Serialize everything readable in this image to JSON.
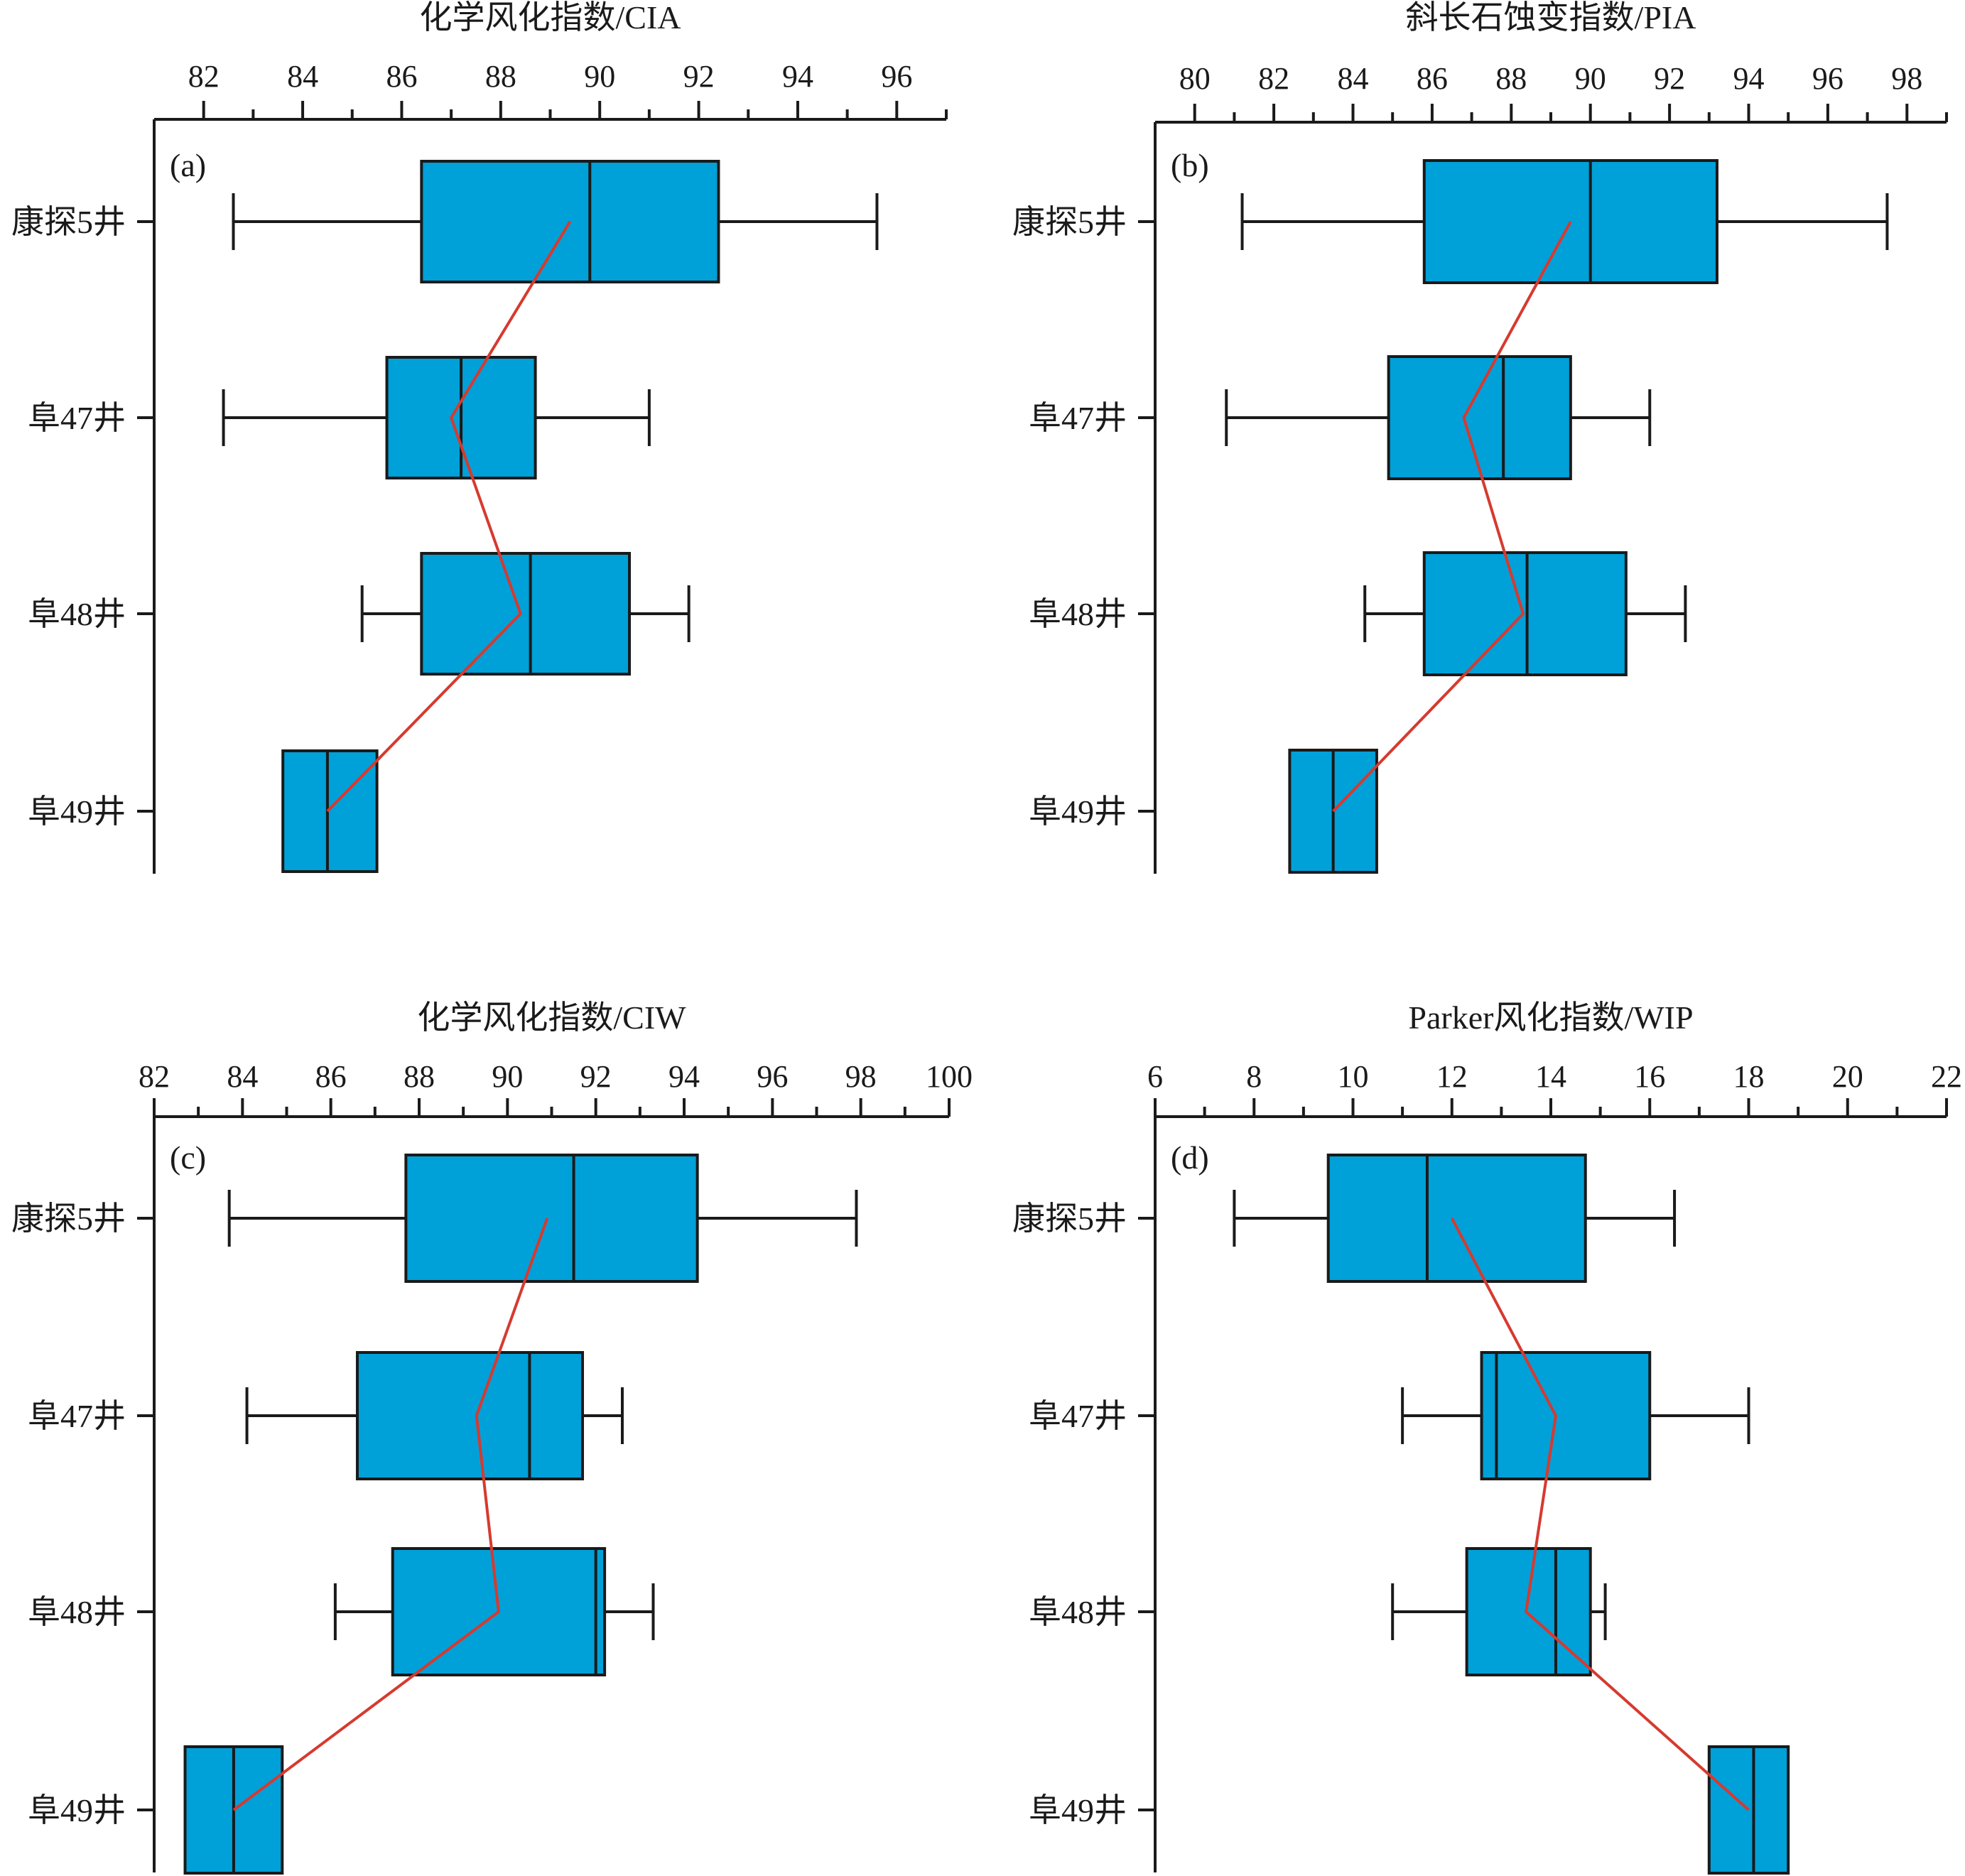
{
  "colors": {
    "box": "#00A0D8",
    "box_stroke": "#1a1a1a",
    "mean_line": "#D63A2F",
    "axis": "#1a1a1a"
  },
  "chart_data": [
    {
      "type": "box",
      "panel_label": "(a)",
      "title": "化学风化指数/CIA",
      "xlim": [
        81,
        97
      ],
      "xticks": [
        82,
        84,
        86,
        88,
        90,
        92,
        94,
        96
      ],
      "xtick_labels": [
        "82",
        "84",
        "86",
        "88",
        "90",
        "92",
        "94",
        "96"
      ],
      "minor_step": 1,
      "categories": [
        "康探5井",
        "阜47井",
        "阜48井",
        "阜49井"
      ],
      "boxes": [
        {
          "min": 82.6,
          "q1": 86.4,
          "median": 89.8,
          "q3": 92.4,
          "max": 95.6
        },
        {
          "min": 82.4,
          "q1": 85.7,
          "median": 87.2,
          "q3": 88.7,
          "max": 91.0
        },
        {
          "min": 85.2,
          "q1": 86.4,
          "median": 88.6,
          "q3": 90.6,
          "max": 91.8
        },
        {
          "q1": 83.6,
          "median": 84.5,
          "q3": 85.5
        }
      ],
      "means": [
        89.4,
        87.0,
        88.4,
        84.5
      ]
    },
    {
      "type": "box",
      "panel_label": "(b)",
      "title": "斜长石蚀变指数/PIA",
      "xlim": [
        79,
        99
      ],
      "xticks": [
        80,
        82,
        84,
        86,
        88,
        90,
        92,
        94,
        96,
        98
      ],
      "xtick_labels": [
        "80",
        "82",
        "84",
        "86",
        "88",
        "90",
        "92",
        "94",
        "96",
        "98"
      ],
      "minor_step": 1,
      "categories": [
        "康探5井",
        "阜47井",
        "阜48井",
        "阜49井"
      ],
      "boxes": [
        {
          "min": 81.2,
          "q1": 85.8,
          "median": 90.0,
          "q3": 93.2,
          "max": 97.5
        },
        {
          "min": 80.8,
          "q1": 84.9,
          "median": 87.8,
          "q3": 89.5,
          "max": 91.5
        },
        {
          "min": 84.3,
          "q1": 85.8,
          "median": 88.4,
          "q3": 90.9,
          "max": 92.4
        },
        {
          "q1": 82.4,
          "median": 83.5,
          "q3": 84.6
        }
      ],
      "means": [
        89.5,
        86.8,
        88.3,
        83.5
      ]
    },
    {
      "type": "box",
      "panel_label": "(c)",
      "title": "化学风化指数/CIW",
      "xlim": [
        82,
        100
      ],
      "xticks": [
        82,
        84,
        86,
        88,
        90,
        92,
        94,
        96,
        98,
        100
      ],
      "xtick_labels": [
        "82",
        "84",
        "86",
        "88",
        "90",
        "92",
        "94",
        "96",
        "98",
        "100"
      ],
      "minor_step": 1,
      "categories": [
        "康探5井",
        "阜47井",
        "阜48井",
        "阜49井"
      ],
      "boxes": [
        {
          "min": 83.7,
          "q1": 87.7,
          "median": 91.5,
          "q3": 94.3,
          "max": 97.9
        },
        {
          "min": 84.1,
          "q1": 86.6,
          "median": 90.5,
          "q3": 91.7,
          "max": 92.6
        },
        {
          "min": 86.1,
          "q1": 87.4,
          "median": 92.0,
          "q3": 92.2,
          "max": 93.3
        },
        {
          "q1": 82.7,
          "median": 83.8,
          "q3": 84.9
        }
      ],
      "means": [
        90.9,
        89.3,
        89.8,
        83.8
      ]
    },
    {
      "type": "box",
      "panel_label": "(d)",
      "title": "Parker风化指数/WIP",
      "xlim": [
        6,
        22
      ],
      "xticks": [
        6,
        8,
        10,
        12,
        14,
        16,
        18,
        20,
        22
      ],
      "xtick_labels": [
        "6",
        "8",
        "10",
        "12",
        "14",
        "16",
        "18",
        "20",
        "22"
      ],
      "minor_step": 1,
      "categories": [
        "康探5井",
        "阜47井",
        "阜48井",
        "阜49井"
      ],
      "boxes": [
        {
          "min": 7.6,
          "q1": 9.5,
          "median": 11.5,
          "q3": 14.7,
          "max": 16.5
        },
        {
          "min": 11.0,
          "q1": 12.6,
          "median": 12.9,
          "q3": 16.0,
          "max": 18.0
        },
        {
          "min": 10.8,
          "q1": 12.3,
          "median": 14.1,
          "q3": 14.8,
          "max": 15.1
        },
        {
          "q1": 17.2,
          "median": 18.1,
          "q3": 18.8
        }
      ],
      "means": [
        12.0,
        14.1,
        13.5,
        18.0
      ]
    }
  ]
}
